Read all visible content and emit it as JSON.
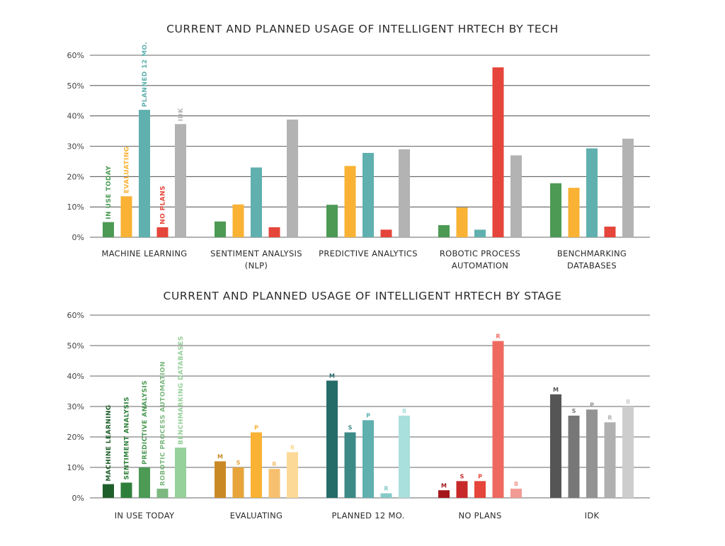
{
  "chart_data": [
    {
      "type": "bar",
      "title": "CURRENT AND PLANNED USAGE OF INTELLIGENT HRTECH BY TECH",
      "categories": [
        [
          "MACHINE LEARNING"
        ],
        [
          "SENTIMENT ANALYSIS",
          "(NLP)"
        ],
        [
          "PREDICTIVE ANALYTICS"
        ],
        [
          "ROBOTIC PROCESS",
          "AUTOMATION"
        ],
        [
          "BENCHMARKING",
          "DATABASES"
        ]
      ],
      "ylim": [
        0,
        60
      ],
      "yticks": [
        "0%",
        "10%",
        "20%",
        "30%",
        "40%",
        "50%",
        "60%"
      ],
      "grid": true,
      "series": [
        {
          "name": "IN USE TODAY",
          "color": "#4c9a54",
          "values": [
            5,
            5.2,
            10.7,
            4,
            17.8
          ]
        },
        {
          "name": "EVALUATING",
          "color": "#f9b233",
          "values": [
            13.5,
            10.8,
            23.5,
            9.8,
            16.3
          ]
        },
        {
          "name": "PLANNED 12 MO.",
          "color": "#5fb0ae",
          "values": [
            42,
            23,
            27.8,
            2.5,
            29.3
          ]
        },
        {
          "name": "NO PLANS",
          "color": "#e5453a",
          "values": [
            3.3,
            3.3,
            2.5,
            56,
            3.5
          ]
        },
        {
          "name": "IDK",
          "color": "#b3b3b3",
          "values": [
            37.3,
            38.8,
            29,
            27,
            32.5
          ]
        }
      ]
    },
    {
      "type": "bar",
      "title": "CURRENT AND PLANNED USAGE OF INTELLIGENT HRTECH BY STAGE",
      "categories": [
        [
          "IN USE TODAY"
        ],
        [
          "EVALUATING"
        ],
        [
          "PLANNED 12 MO."
        ],
        [
          "NO PLANS"
        ],
        [
          "IDK"
        ]
      ],
      "ylim": [
        0,
        60
      ],
      "yticks": [
        "0%",
        "10%",
        "20%",
        "30%",
        "40%",
        "50%",
        "60%"
      ],
      "grid": true,
      "series": [
        {
          "name": "MACHINE LEARNING",
          "short": "M",
          "values": [
            4.5,
            12,
            38.5,
            2.5,
            34
          ]
        },
        {
          "name": "SENTIMENT ANALYSIS",
          "short": "S",
          "values": [
            5,
            10,
            21.5,
            5.5,
            27
          ]
        },
        {
          "name": "PREDICTIVE ANALYSIS",
          "short": "P",
          "values": [
            10,
            21.5,
            25.5,
            5.5,
            29
          ]
        },
        {
          "name": "ROBOTIC PROCESS AUTOMATION",
          "short": "R",
          "values": [
            3,
            9.5,
            1.5,
            51.5,
            24.8
          ]
        },
        {
          "name": "BENCHMARKING DATABASES",
          "short": "B",
          "values": [
            16.5,
            15,
            27,
            3,
            30
          ]
        }
      ],
      "group_colors": [
        [
          "#1e5e2a",
          "#2e7f3a",
          "#4c9a54",
          "#7cb87f",
          "#96d09a"
        ],
        [
          "#c98a26",
          "#e6a43a",
          "#f9b233",
          "#f6c06e",
          "#fcd996"
        ],
        [
          "#256c69",
          "#3b8a86",
          "#5fb0ae",
          "#86cbc7",
          "#a9dfdc"
        ],
        [
          "#a3171b",
          "#c7282a",
          "#e5453a",
          "#ee6a60",
          "#f29b94"
        ],
        [
          "#555555",
          "#777777",
          "#939393",
          "#b0b0b0",
          "#cdcdcd"
        ]
      ]
    }
  ]
}
